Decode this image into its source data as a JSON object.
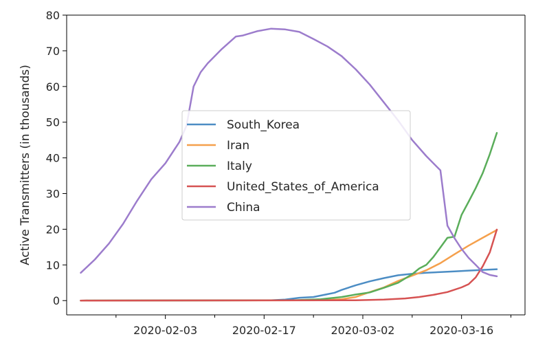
{
  "chart_data": {
    "type": "line",
    "xlabel": "",
    "ylabel": "Active Transmitters (in thousands)",
    "xlim": [
      "2020-01-20",
      "2020-03-25"
    ],
    "ylim": [
      -4,
      80
    ],
    "x_ticks": [
      "2020-02-03",
      "2020-02-17",
      "2020-03-02",
      "2020-03-16"
    ],
    "x_minor_ticks": [
      "2020-01-27",
      "2020-02-10",
      "2020-02-24",
      "2020-03-09",
      "2020-03-23"
    ],
    "y_ticks": [
      0,
      10,
      20,
      30,
      40,
      50,
      60,
      70,
      80
    ],
    "grid": false,
    "legend_position": "center",
    "series": [
      {
        "name": "South_Korea",
        "color": "#4c8dc4",
        "points": [
          [
            "2020-01-22",
            0
          ],
          [
            "2020-02-18",
            0.1
          ],
          [
            "2020-02-20",
            0.3
          ],
          [
            "2020-02-22",
            0.8
          ],
          [
            "2020-02-24",
            1.0
          ],
          [
            "2020-02-26",
            1.8
          ],
          [
            "2020-02-27",
            2.2
          ],
          [
            "2020-02-28",
            3.0
          ],
          [
            "2020-03-01",
            4.3
          ],
          [
            "2020-03-03",
            5.4
          ],
          [
            "2020-03-05",
            6.3
          ],
          [
            "2020-03-07",
            7.1
          ],
          [
            "2020-03-09",
            7.5
          ],
          [
            "2020-03-11",
            7.8
          ],
          [
            "2020-03-13",
            8.0
          ],
          [
            "2020-03-15",
            8.2
          ],
          [
            "2020-03-17",
            8.4
          ],
          [
            "2020-03-19",
            8.6
          ],
          [
            "2020-03-21",
            8.8
          ]
        ]
      },
      {
        "name": "Iran",
        "color": "#f5a04c",
        "points": [
          [
            "2020-01-22",
            0
          ],
          [
            "2020-02-25",
            0.1
          ],
          [
            "2020-02-28",
            0.4
          ],
          [
            "2020-03-01",
            1.0
          ],
          [
            "2020-03-03",
            2.4
          ],
          [
            "2020-03-05",
            3.7
          ],
          [
            "2020-03-07",
            5.5
          ],
          [
            "2020-03-09",
            7.0
          ],
          [
            "2020-03-11",
            8.5
          ],
          [
            "2020-03-13",
            10.5
          ],
          [
            "2020-03-15",
            13.0
          ],
          [
            "2020-03-17",
            15.4
          ],
          [
            "2020-03-19",
            17.6
          ],
          [
            "2020-03-21",
            19.8
          ]
        ]
      },
      {
        "name": "Italy",
        "color": "#5aad5a",
        "points": [
          [
            "2020-01-22",
            0
          ],
          [
            "2020-02-21",
            0.1
          ],
          [
            "2020-02-25",
            0.4
          ],
          [
            "2020-02-28",
            1.0
          ],
          [
            "2020-03-01",
            1.7
          ],
          [
            "2020-03-03",
            2.3
          ],
          [
            "2020-03-05",
            3.6
          ],
          [
            "2020-03-07",
            5.0
          ],
          [
            "2020-03-09",
            7.4
          ],
          [
            "2020-03-10",
            9.0
          ],
          [
            "2020-03-11",
            10.0
          ],
          [
            "2020-03-12",
            12.2
          ],
          [
            "2020-03-13",
            14.9
          ],
          [
            "2020-03-14",
            17.6
          ],
          [
            "2020-03-15",
            17.9
          ],
          [
            "2020-03-16",
            24.0
          ],
          [
            "2020-03-17",
            27.7
          ],
          [
            "2020-03-18",
            31.5
          ],
          [
            "2020-03-19",
            35.7
          ],
          [
            "2020-03-20",
            41.0
          ],
          [
            "2020-03-21",
            47.0
          ]
        ]
      },
      {
        "name": "United_States_of_America",
        "color": "#d65252",
        "points": [
          [
            "2020-01-22",
            0
          ],
          [
            "2020-03-01",
            0.1
          ],
          [
            "2020-03-05",
            0.3
          ],
          [
            "2020-03-08",
            0.6
          ],
          [
            "2020-03-10",
            1.0
          ],
          [
            "2020-03-12",
            1.6
          ],
          [
            "2020-03-14",
            2.4
          ],
          [
            "2020-03-16",
            3.7
          ],
          [
            "2020-03-17",
            4.6
          ],
          [
            "2020-03-18",
            6.5
          ],
          [
            "2020-03-19",
            9.6
          ],
          [
            "2020-03-20",
            13.5
          ],
          [
            "2020-03-21",
            19.9
          ]
        ]
      },
      {
        "name": "China",
        "color": "#9c7ccc",
        "points": [
          [
            "2020-01-22",
            7.8
          ],
          [
            "2020-01-24",
            11.5
          ],
          [
            "2020-01-26",
            16.0
          ],
          [
            "2020-01-28",
            21.5
          ],
          [
            "2020-01-30",
            28.0
          ],
          [
            "2020-02-01",
            34.0
          ],
          [
            "2020-02-03",
            38.5
          ],
          [
            "2020-02-05",
            44.5
          ],
          [
            "2020-02-06",
            49.0
          ],
          [
            "2020-02-07",
            60.0
          ],
          [
            "2020-02-08",
            64.0
          ],
          [
            "2020-02-09",
            66.5
          ],
          [
            "2020-02-11",
            70.5
          ],
          [
            "2020-02-13",
            74.0
          ],
          [
            "2020-02-14",
            74.3
          ],
          [
            "2020-02-16",
            75.5
          ],
          [
            "2020-02-18",
            76.2
          ],
          [
            "2020-02-20",
            76.0
          ],
          [
            "2020-02-22",
            75.3
          ],
          [
            "2020-02-24",
            73.3
          ],
          [
            "2020-02-26",
            71.2
          ],
          [
            "2020-02-28",
            68.5
          ],
          [
            "2020-03-01",
            64.8
          ],
          [
            "2020-03-03",
            60.5
          ],
          [
            "2020-03-05",
            55.5
          ],
          [
            "2020-03-07",
            50.5
          ],
          [
            "2020-03-09",
            45.0
          ],
          [
            "2020-03-11",
            40.5
          ],
          [
            "2020-03-13",
            36.5
          ],
          [
            "2020-03-14",
            21.0
          ],
          [
            "2020-03-15",
            17.5
          ],
          [
            "2020-03-16",
            14.5
          ],
          [
            "2020-03-17",
            12.0
          ],
          [
            "2020-03-18",
            10.0
          ],
          [
            "2020-03-19",
            8.0
          ],
          [
            "2020-03-20",
            7.2
          ],
          [
            "2020-03-21",
            6.8
          ]
        ]
      }
    ]
  }
}
